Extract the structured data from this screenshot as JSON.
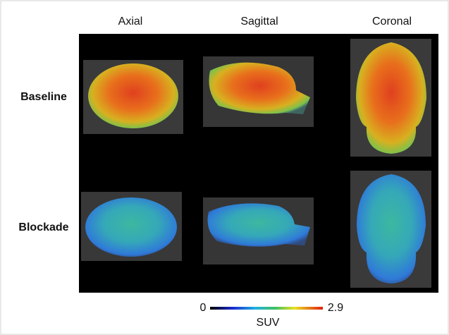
{
  "columns": [
    "Axial",
    "Sagittal",
    "Coronal"
  ],
  "rows": [
    "Baseline",
    "Blockade"
  ],
  "colorbar": {
    "min": 0,
    "max": 2.9,
    "label": "SUV"
  }
}
